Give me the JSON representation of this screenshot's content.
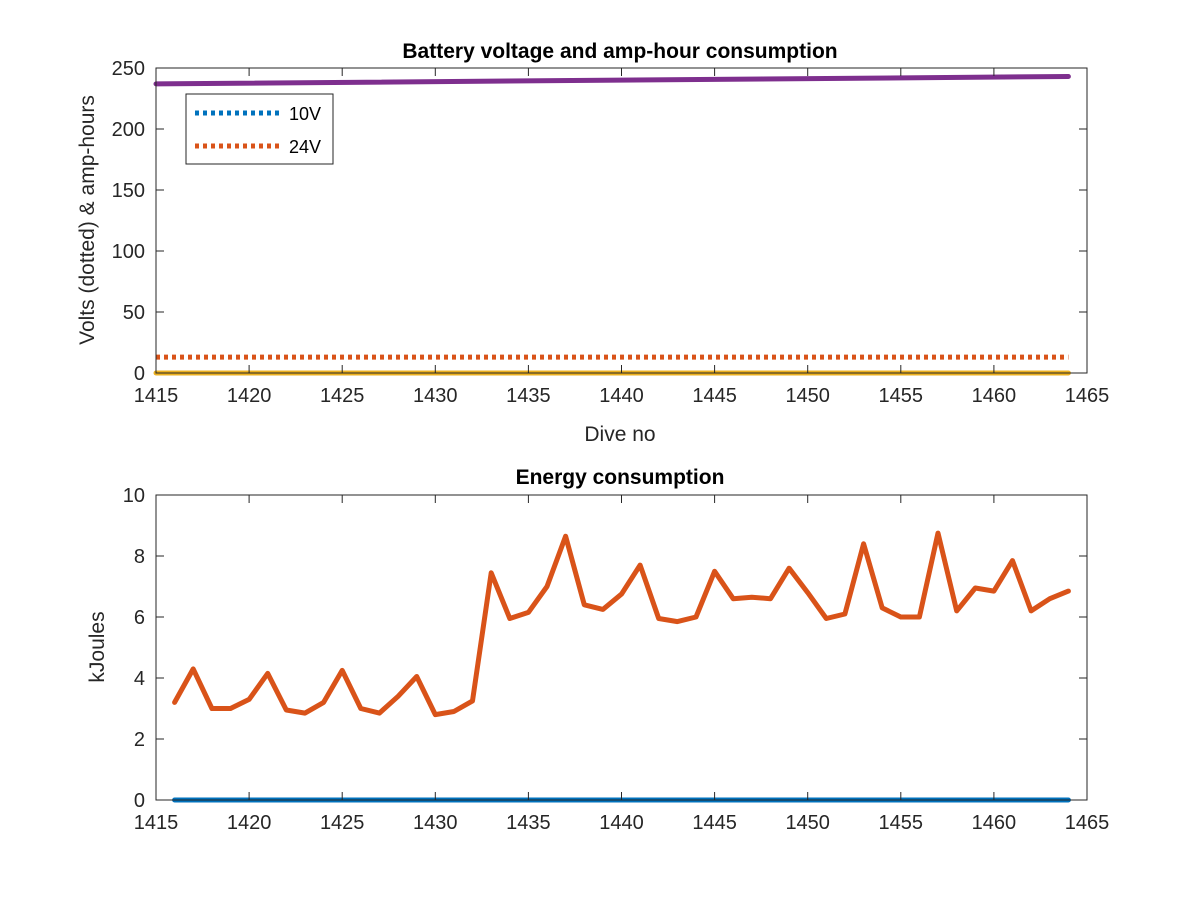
{
  "colors": {
    "blue": "#0072BD",
    "orange": "#D95319",
    "yellow": "#EDB120",
    "purple": "#7E2F8E",
    "axis": "#262626"
  },
  "chart_data": [
    {
      "type": "line",
      "title": "Battery voltage and amp-hour consumption",
      "xlabel": "Dive no",
      "ylabel": "Volts (dotted) & amp-hours",
      "xlim": [
        1415,
        1465
      ],
      "ylim": [
        0,
        250
      ],
      "xticks": [
        1415,
        1420,
        1425,
        1430,
        1435,
        1440,
        1445,
        1450,
        1455,
        1460,
        1465
      ],
      "yticks": [
        0,
        50,
        100,
        150,
        200,
        250
      ],
      "grid": false,
      "legend": {
        "location": "top-left",
        "entries": [
          "10V",
          "24V"
        ]
      },
      "series": [
        {
          "name": "10V",
          "style": "dotted",
          "color": "#0072BD",
          "x": [
            1415,
            1464
          ],
          "y": [
            0,
            0
          ]
        },
        {
          "name": "24V",
          "style": "dotted",
          "color": "#D95319",
          "x": [
            1415,
            1464
          ],
          "y": [
            13,
            13
          ]
        },
        {
          "style": "solid",
          "color": "#EDB120",
          "x": [
            1415,
            1464
          ],
          "y": [
            0,
            0
          ]
        },
        {
          "style": "solid",
          "color": "#7E2F8E",
          "x": [
            1415,
            1464
          ],
          "y": [
            237,
            243
          ]
        }
      ]
    },
    {
      "type": "line",
      "title": "Energy consumption",
      "xlabel": "",
      "ylabel": "kJoules",
      "xlim": [
        1415,
        1465
      ],
      "ylim": [
        0,
        10
      ],
      "xticks": [
        1415,
        1420,
        1425,
        1430,
        1435,
        1440,
        1445,
        1450,
        1455,
        1460,
        1465
      ],
      "yticks": [
        0,
        2,
        4,
        6,
        8,
        10
      ],
      "grid": false,
      "series": [
        {
          "style": "solid",
          "color": "#0072BD",
          "x": [
            1416,
            1464
          ],
          "y": [
            0,
            0
          ]
        },
        {
          "style": "solid",
          "color": "#D95319",
          "x": [
            1416,
            1417,
            1418,
            1419,
            1420,
            1421,
            1422,
            1423,
            1424,
            1425,
            1426,
            1427,
            1428,
            1429,
            1430,
            1431,
            1432,
            1433,
            1434,
            1435,
            1436,
            1437,
            1438,
            1439,
            1440,
            1441,
            1442,
            1443,
            1444,
            1445,
            1446,
            1447,
            1448,
            1449,
            1450,
            1451,
            1452,
            1453,
            1454,
            1455,
            1456,
            1457,
            1458,
            1459,
            1460,
            1461,
            1462,
            1463,
            1464
          ],
          "y": [
            3.2,
            4.3,
            3.0,
            3.0,
            3.3,
            4.15,
            2.95,
            2.85,
            3.2,
            4.25,
            3.0,
            2.85,
            3.4,
            4.05,
            2.8,
            2.9,
            3.25,
            7.45,
            5.95,
            6.15,
            7.0,
            8.65,
            6.4,
            6.25,
            6.75,
            7.7,
            5.95,
            5.85,
            6.0,
            7.5,
            6.6,
            6.65,
            6.6,
            7.6,
            6.8,
            5.95,
            6.1,
            8.4,
            6.3,
            6.0,
            6.0,
            8.75,
            6.2,
            6.95,
            6.85,
            7.85,
            6.2,
            6.6,
            6.85
          ]
        }
      ]
    }
  ]
}
